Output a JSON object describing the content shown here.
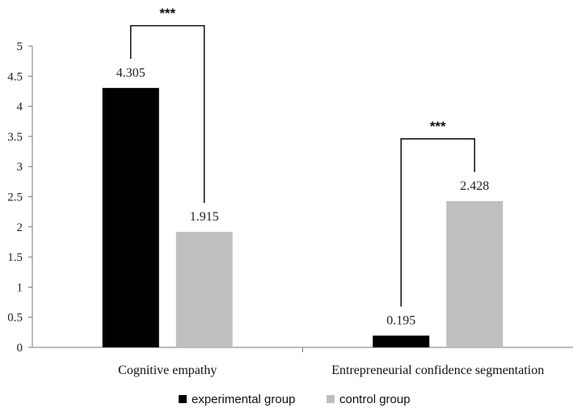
{
  "chart_data": {
    "type": "bar",
    "title": "",
    "xlabel": "",
    "ylabel": "",
    "ylim": [
      0,
      5
    ],
    "yticks": [
      0,
      0.5,
      1,
      1.5,
      2,
      2.5,
      3,
      3.5,
      4,
      4.5,
      5
    ],
    "ytick_labels": [
      "0",
      "0.5",
      "1",
      "1.5",
      "2",
      "2.5",
      "3",
      "3.5",
      "4",
      "4.5",
      "5"
    ],
    "categories": [
      "Cognitive empathy",
      "Entrepreneurial confidence segmentation"
    ],
    "series": [
      {
        "name": "experimental group",
        "values": [
          4.305,
          0.195
        ],
        "labels": [
          "4.305",
          "0.195"
        ],
        "color": "#000000"
      },
      {
        "name": "control group",
        "values": [
          1.915,
          2.428
        ],
        "labels": [
          "1.915",
          "2.428"
        ],
        "color": "#bfbfbf"
      }
    ],
    "significance": [
      "***",
      "***"
    ],
    "legend_position": "bottom"
  }
}
